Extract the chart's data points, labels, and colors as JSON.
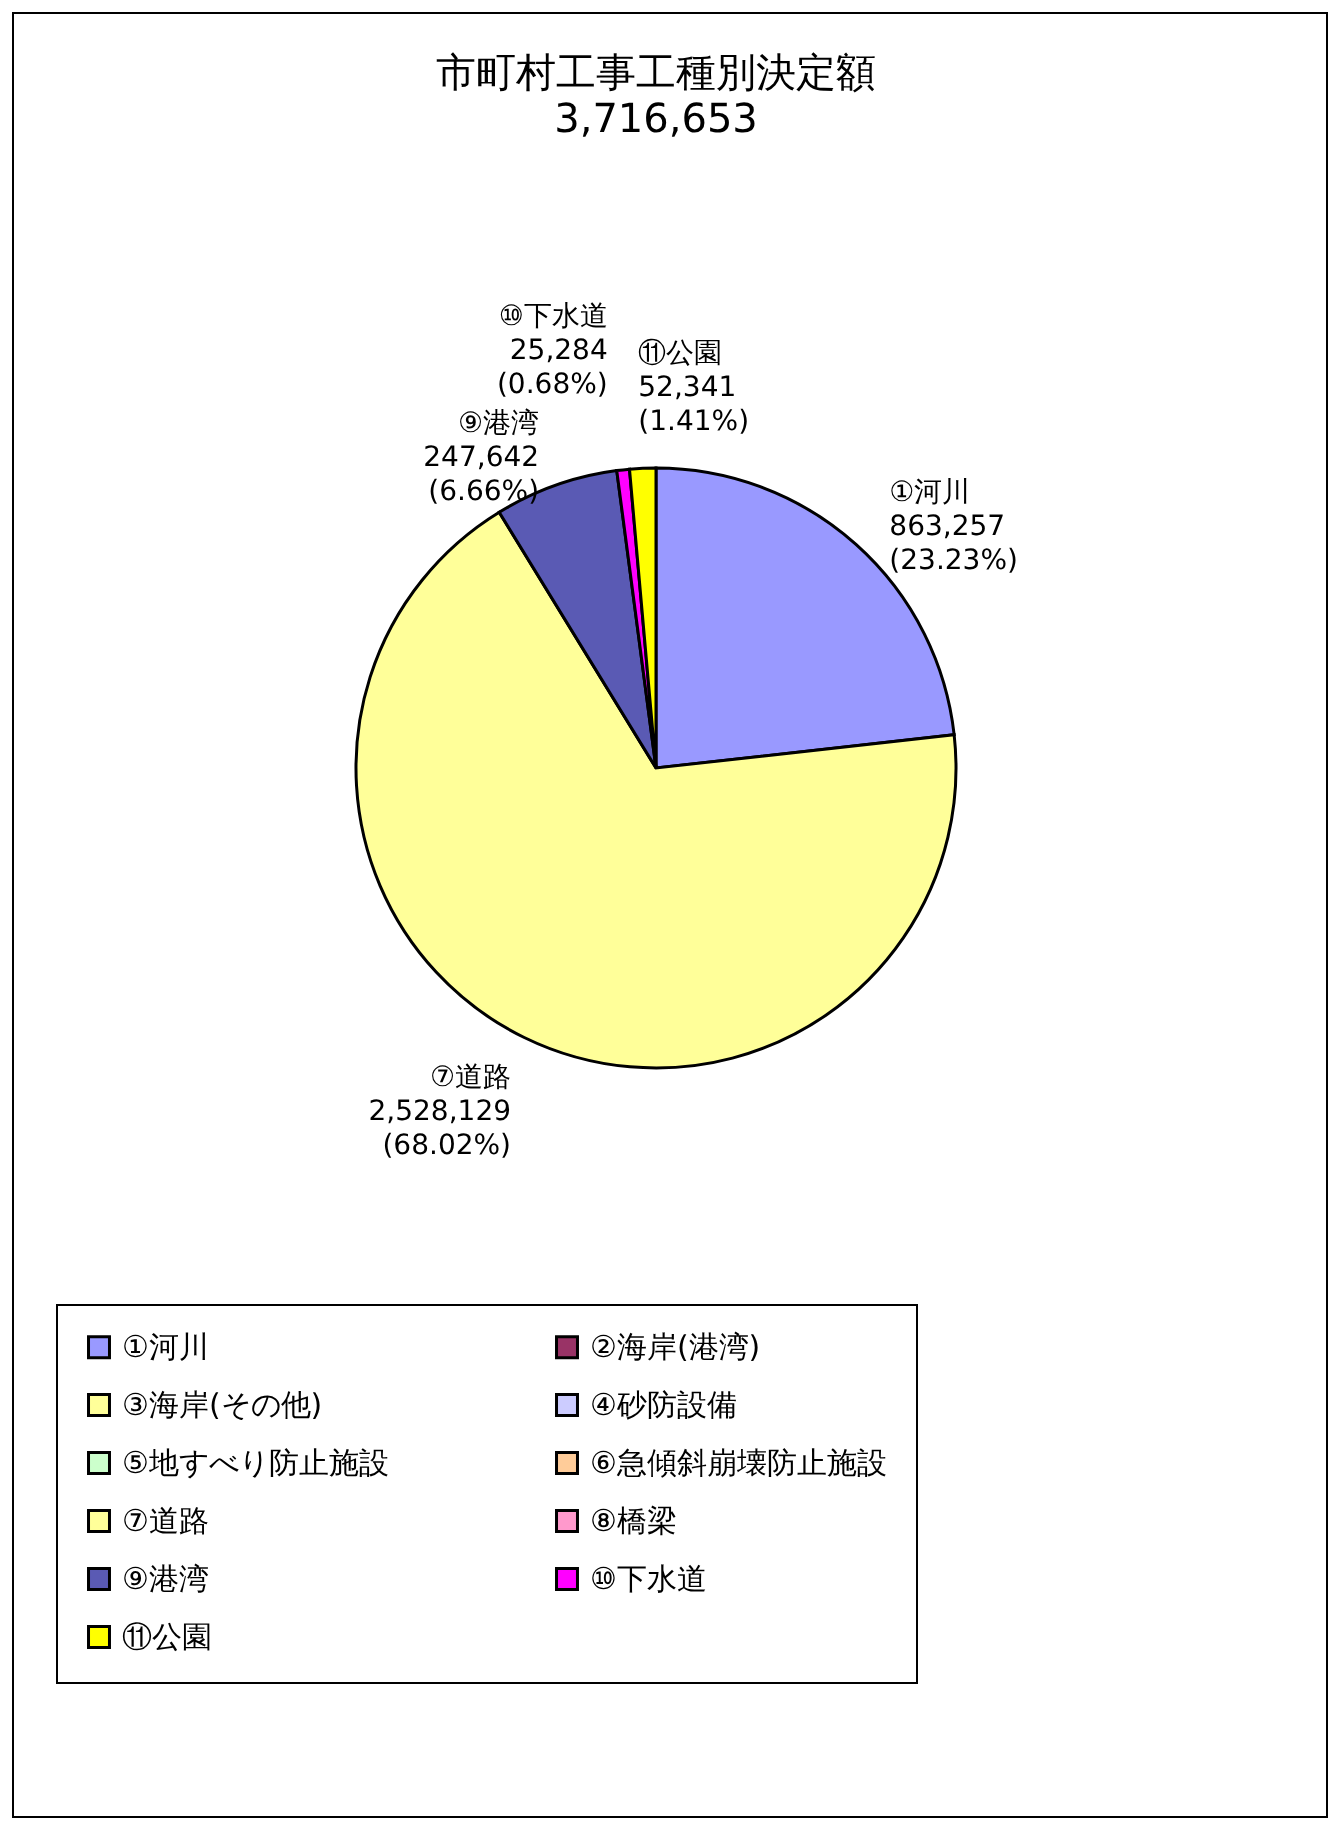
{
  "chart_data": {
    "type": "pie",
    "title": "市町村工事工種別決定額",
    "subtitle": "3,716,653",
    "categories": [
      "①河川",
      "②海岸(港湾)",
      "③海岸(その他)",
      "④砂防設備",
      "⑤地すべり防止施設",
      "⑥急傾斜崩壊防止施設",
      "⑦道路",
      "⑧橋梁",
      "⑨港湾",
      "⑩下水道",
      "⑪公園"
    ],
    "values": [
      863257,
      0,
      0,
      0,
      0,
      0,
      2528129,
      0,
      247642,
      25284,
      52341
    ],
    "value_labels": [
      "863,257\n(23.23%)",
      null,
      null,
      null,
      null,
      null,
      "2,528,129\n(68.02%)",
      null,
      "247,642\n(6.66%)",
      "25,284\n(0.68%)",
      "52,341\n(1.41%)"
    ],
    "colors": [
      "#9999ff",
      "#993366",
      "#ffff99",
      "#ccccff",
      "#ccffcc",
      "#ffcc99",
      "#ffff99",
      "#ff99cc",
      "#5a5ab4",
      "#ff00ff",
      "#ffff00"
    ],
    "legend": "bottom"
  }
}
